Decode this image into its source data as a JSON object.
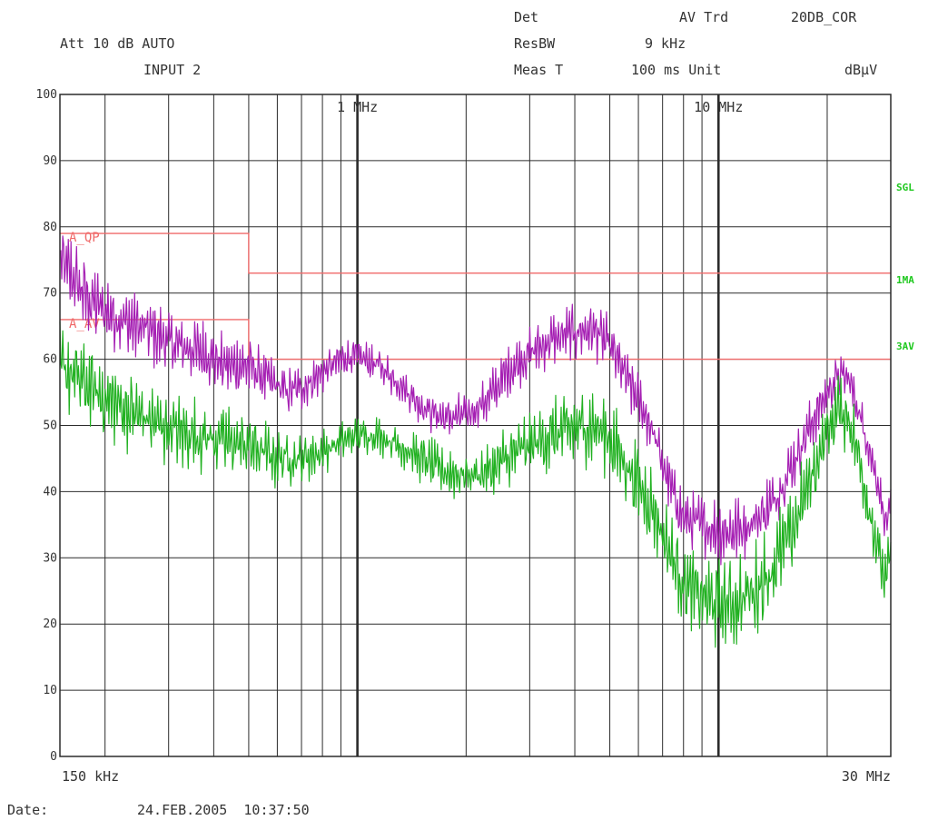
{
  "header": {
    "det_label": "Det",
    "det_value": "AV Trd",
    "correction": "20DB_COR",
    "att": "Att 10 dB AUTO",
    "resbw_label": "ResBW",
    "resbw_value": "9 kHz",
    "input": "INPUT 2",
    "meas_label": "Meas T",
    "meas_value": "100 ms Unit",
    "unit": "dBμV"
  },
  "footer": {
    "date_label": "Date:",
    "date_value": "24.FEB.2005  10:37:50"
  },
  "colors": {
    "grid": "#2b2b2b",
    "limit": "#f06a6a",
    "trace_purple": "#a51fb3",
    "trace_green": "#21b121",
    "marker_text": "#1ec81e"
  },
  "chart_data": {
    "type": "line",
    "x_scale": "log",
    "xlim_hz": [
      150000,
      30000000
    ],
    "ylim": [
      0,
      100
    ],
    "ylabel": "dBμV",
    "y_ticks": [
      0,
      10,
      20,
      30,
      40,
      50,
      60,
      70,
      80,
      90,
      100
    ],
    "x_tick_labels": [
      {
        "label": "1 MHz",
        "x_hz": 1000000
      },
      {
        "label": "10 MHz",
        "x_hz": 10000000
      }
    ],
    "x_edge_labels": {
      "left": "150 kHz",
      "right": "30 MHz"
    },
    "grid": true,
    "right_markers": [
      {
        "label": "SGL",
        "y": 86
      },
      {
        "label": "1MA",
        "y": 72
      },
      {
        "label": "3AV",
        "y": 62
      }
    ],
    "limit_lines": [
      {
        "name": "A_QP",
        "points": [
          [
            150000,
            79
          ],
          [
            500000,
            79
          ],
          [
            500000,
            73
          ],
          [
            30000000,
            73
          ]
        ]
      },
      {
        "name": "A_AV",
        "points": [
          [
            150000,
            66
          ],
          [
            500000,
            66
          ],
          [
            500000,
            60
          ],
          [
            30000000,
            60
          ]
        ]
      }
    ],
    "series": [
      {
        "color": "purple",
        "ripple": [
          [
            150000,
            7
          ],
          [
            500000,
            5
          ],
          [
            1000000,
            3
          ],
          [
            4000000,
            5
          ],
          [
            8000000,
            5
          ],
          [
            12000000,
            6
          ],
          [
            30000000,
            3
          ]
        ],
        "points": [
          [
            150000,
            75
          ],
          [
            180000,
            69
          ],
          [
            220000,
            66
          ],
          [
            270000,
            64
          ],
          [
            320000,
            62
          ],
          [
            380000,
            61
          ],
          [
            430000,
            59
          ],
          [
            500000,
            59
          ],
          [
            560000,
            57
          ],
          [
            640000,
            55
          ],
          [
            720000,
            56
          ],
          [
            800000,
            58
          ],
          [
            900000,
            60
          ],
          [
            1000000,
            60.5
          ],
          [
            1150000,
            59
          ],
          [
            1300000,
            56.5
          ],
          [
            1500000,
            53
          ],
          [
            1750000,
            51
          ],
          [
            2000000,
            51.5
          ],
          [
            2300000,
            54
          ],
          [
            2600000,
            58
          ],
          [
            3000000,
            61
          ],
          [
            3500000,
            63
          ],
          [
            4000000,
            64
          ],
          [
            4500000,
            64.5
          ],
          [
            5000000,
            62
          ],
          [
            5700000,
            56
          ],
          [
            6500000,
            50
          ],
          [
            7200000,
            42
          ],
          [
            8000000,
            36
          ],
          [
            9000000,
            35
          ],
          [
            10000000,
            34
          ],
          [
            11000000,
            34
          ],
          [
            12500000,
            35.5
          ],
          [
            14000000,
            38
          ],
          [
            16000000,
            44
          ],
          [
            18000000,
            50
          ],
          [
            20000000,
            55
          ],
          [
            21500000,
            57.5
          ],
          [
            23000000,
            57
          ],
          [
            24500000,
            52
          ],
          [
            26000000,
            47
          ],
          [
            28000000,
            40
          ],
          [
            29000000,
            35
          ],
          [
            30000000,
            38
          ]
        ]
      },
      {
        "color": "green",
        "ripple": [
          [
            150000,
            8
          ],
          [
            500000,
            6
          ],
          [
            1000000,
            3
          ],
          [
            4000000,
            7
          ],
          [
            8000000,
            7
          ],
          [
            12000000,
            9
          ],
          [
            30000000,
            5
          ]
        ],
        "points": [
          [
            150000,
            59
          ],
          [
            200000,
            54
          ],
          [
            260000,
            51
          ],
          [
            320000,
            49
          ],
          [
            400000,
            48
          ],
          [
            500000,
            47
          ],
          [
            600000,
            45
          ],
          [
            700000,
            45
          ],
          [
            800000,
            46
          ],
          [
            900000,
            47.5
          ],
          [
            1000000,
            48.5
          ],
          [
            1150000,
            48.5
          ],
          [
            1300000,
            47
          ],
          [
            1500000,
            45
          ],
          [
            1750000,
            43
          ],
          [
            2000000,
            42.5
          ],
          [
            2300000,
            43
          ],
          [
            2600000,
            45
          ],
          [
            3000000,
            47
          ],
          [
            3500000,
            48.5
          ],
          [
            4000000,
            49.5
          ],
          [
            4500000,
            50
          ],
          [
            5000000,
            48
          ],
          [
            5700000,
            43
          ],
          [
            6500000,
            38
          ],
          [
            7200000,
            32
          ],
          [
            8000000,
            26
          ],
          [
            9000000,
            24
          ],
          [
            10000000,
            23
          ],
          [
            11000000,
            23
          ],
          [
            12500000,
            25
          ],
          [
            14000000,
            28
          ],
          [
            16000000,
            34
          ],
          [
            18000000,
            42
          ],
          [
            20000000,
            49
          ],
          [
            21500000,
            52.5
          ],
          [
            23000000,
            51
          ],
          [
            24500000,
            45
          ],
          [
            26000000,
            38
          ],
          [
            28000000,
            30
          ],
          [
            29000000,
            26
          ],
          [
            30000000,
            31
          ]
        ]
      }
    ]
  }
}
